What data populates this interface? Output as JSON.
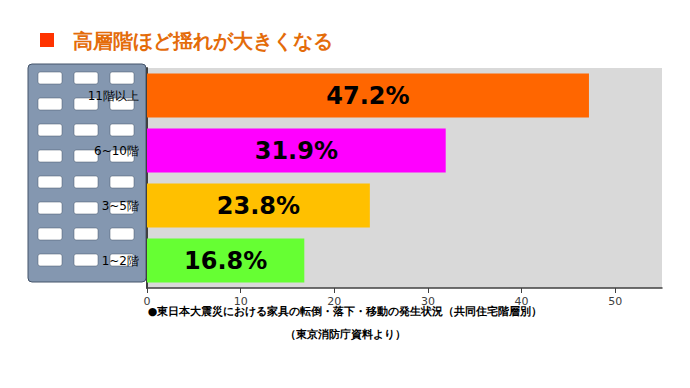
{
  "chart_data": {
    "type": "bar",
    "orientation": "horizontal",
    "title": "高層階ほど揺れが大きくなる",
    "annotations": [
      "●東日本大震災における家具の転倒・落下・移動の発生状況（共同住宅階層別）",
      "（東京消防庁資料より）"
    ],
    "categories": [
      "11階以上",
      "6~10階",
      "3~5階",
      "1~2階"
    ],
    "values": [
      47.2,
      31.9,
      23.8,
      16.8
    ],
    "value_labels": [
      "47.2%",
      "31.9%",
      "23.8%",
      "16.8%"
    ],
    "colors": [
      "#FF6600",
      "#FF00FF",
      "#FFC000",
      "#66FF33"
    ],
    "xlim": [
      0,
      55
    ],
    "xticks": [
      0,
      10,
      20,
      30,
      40,
      50
    ],
    "grid": false,
    "data_labels": true
  }
}
